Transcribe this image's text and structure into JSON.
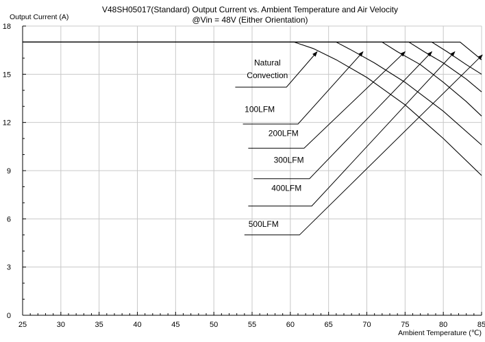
{
  "chart_data": {
    "type": "line",
    "title": "V48SH05017(Standard)  Output Current vs. Ambient Temperature and Air Velocity",
    "subtitle": "@Vin = 48V (Either Orientation)",
    "xlabel": "Ambient Temperature (℃)",
    "ylabel": "Output Current (A)",
    "xlim": [
      25,
      85
    ],
    "ylim": [
      0,
      18
    ],
    "x_ticks": [
      25,
      30,
      35,
      40,
      45,
      50,
      55,
      60,
      65,
      70,
      75,
      80,
      85
    ],
    "y_ticks": [
      0,
      3,
      6,
      9,
      12,
      15,
      18
    ],
    "grid": true,
    "series": [
      {
        "name": "Natural Convection",
        "x": [
          25,
          60.5,
          63,
          66,
          70,
          75,
          80,
          85
        ],
        "y": [
          17,
          17,
          16.6,
          15.9,
          14.8,
          13.1,
          11.0,
          8.7
        ]
      },
      {
        "name": "100LFM",
        "x": [
          25,
          66,
          68,
          71,
          75,
          80,
          85
        ],
        "y": [
          17,
          17,
          16.5,
          15.7,
          14.5,
          12.7,
          10.6
        ]
      },
      {
        "name": "200LFM",
        "x": [
          25,
          72,
          74,
          77,
          80,
          83,
          85
        ],
        "y": [
          17,
          17,
          16.4,
          15.6,
          14.5,
          13.3,
          12.4
        ]
      },
      {
        "name": "300LFM",
        "x": [
          25,
          75.5,
          77.5,
          80,
          83,
          85
        ],
        "y": [
          17,
          17,
          16.4,
          15.7,
          14.7,
          13.9
        ]
      },
      {
        "name": "400LFM",
        "x": [
          25,
          78.5,
          80.5,
          83,
          85
        ],
        "y": [
          17,
          17,
          16.4,
          15.6,
          15.0
        ]
      },
      {
        "name": "500LFM",
        "x": [
          25,
          82.2,
          84,
          85
        ],
        "y": [
          17,
          17,
          16.3,
          15.9
        ]
      }
    ],
    "annotations": [
      {
        "series": "Natural Convection",
        "lines": [
          "Natural",
          "Convection"
        ],
        "text_x": 57,
        "text_y": [
          15.55,
          14.75
        ],
        "hook_x": [
          52.8,
          59.5
        ],
        "hook_y": 14.2,
        "arrow_to": [
          63.5,
          16.4
        ]
      },
      {
        "series": "100LFM",
        "lines": [
          "100LFM"
        ],
        "text_x": 56,
        "text_y": [
          12.65
        ],
        "hook_x": [
          53.8,
          61
        ],
        "hook_y": 11.9,
        "arrow_to": [
          69.5,
          16.4
        ]
      },
      {
        "series": "200LFM",
        "lines": [
          "200LFM"
        ],
        "text_x": 59.1,
        "text_y": [
          11.15
        ],
        "hook_x": [
          54.5,
          61.8
        ],
        "hook_y": 10.4,
        "arrow_to": [
          75,
          16.4
        ]
      },
      {
        "series": "300LFM",
        "lines": [
          "300LFM"
        ],
        "text_x": 59.8,
        "text_y": [
          9.5
        ],
        "hook_x": [
          55.2,
          62.5
        ],
        "hook_y": 8.5,
        "arrow_to": [
          78.5,
          16.4
        ]
      },
      {
        "series": "400LFM",
        "lines": [
          "400LFM"
        ],
        "text_x": 59.5,
        "text_y": [
          7.75
        ],
        "hook_x": [
          54.5,
          62.8
        ],
        "hook_y": 6.8,
        "arrow_to": [
          81.5,
          16.4
        ]
      },
      {
        "series": "500LFM",
        "lines": [
          "500LFM"
        ],
        "text_x": 56.5,
        "text_y": [
          5.5
        ],
        "hook_x": [
          54,
          61.2
        ],
        "hook_y": 5.0,
        "arrow_to": [
          85.1,
          16.2
        ]
      }
    ]
  }
}
